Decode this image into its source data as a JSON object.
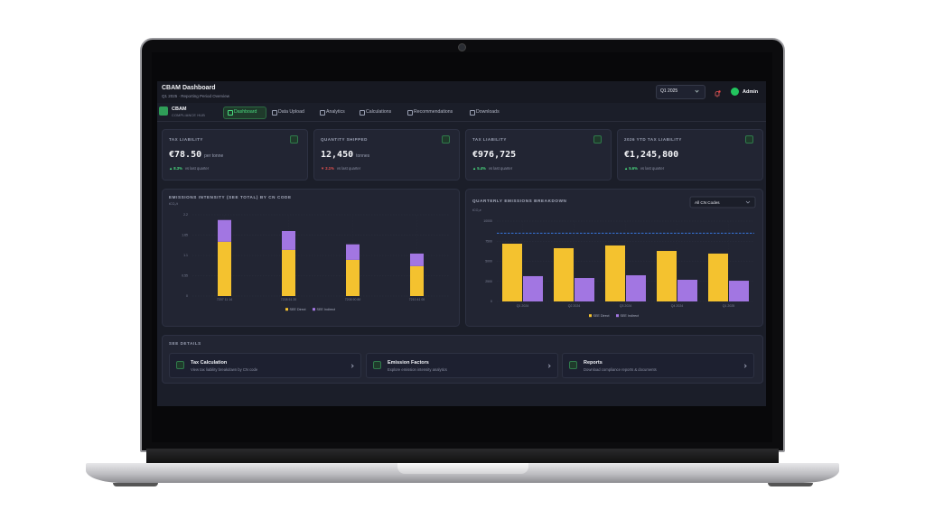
{
  "header": {
    "title": "CBAM Dashboard",
    "subtitle": "Q1 2025 · Reporting Period Overview",
    "period": "Q1 2025",
    "user": "Admin"
  },
  "nav": {
    "brand": "CBAM",
    "tagline": "COMPLIANCE HUB",
    "tabs": [
      "Dashboard",
      "Data Upload",
      "Analytics",
      "Calculations",
      "Recommendations",
      "Downloads"
    ],
    "active": 0
  },
  "kpi_cards": [
    {
      "label": "TAX LIABILITY",
      "value": "€78.50",
      "unit": "per tonne",
      "change": "▲ 8.3%",
      "trend": "up",
      "note": "vs last quarter"
    },
    {
      "label": "QUANTITY SHIPPED",
      "value": "12,450",
      "unit": "tonnes",
      "change": "▼ 2.1%",
      "trend": "down",
      "note": "vs last quarter"
    },
    {
      "label": "TAX LIABILITY",
      "value": "€976,725",
      "change": "▲ 5.4%",
      "trend": "up",
      "note": "vs last quarter"
    },
    {
      "label": "2026 YTD TAX LIABILITY",
      "value": "€1,245,800",
      "change": "▲ 5.6%",
      "trend": "up",
      "note": "vs last quarter"
    }
  ],
  "chart_data": [
    {
      "type": "bar",
      "stacked": true,
      "title": "EMISSIONS INTENSITY (SEE TOTAL) BY CN CODE",
      "y_label": "tCO₂/t",
      "categories": [
        "7207 11 14",
        "7208 51 20",
        "7208 90 80",
        "7210 41 00"
      ],
      "series": [
        {
          "name": "SEE Direct",
          "color": "#f4c22f",
          "values": [
            1.47,
            1.25,
            0.98,
            0.81
          ]
        },
        {
          "name": "SEE Indirect",
          "color": "#a276e2",
          "values": [
            0.59,
            0.51,
            0.42,
            0.34
          ]
        }
      ],
      "ylim": [
        0,
        2.2
      ],
      "yticks": [
        0,
        0.55,
        1.1,
        1.65,
        2.2
      ],
      "grid": true
    },
    {
      "type": "bar",
      "stacked": false,
      "title": "QUARTERLY EMISSIONS BREAKDOWN",
      "y_label": "tCO₂e",
      "filter": "All CN Codes",
      "categories": [
        "Q1 2024",
        "Q2 2024",
        "Q3 2024",
        "Q4 2024",
        "Q1 2025"
      ],
      "series": [
        {
          "name": "SEE Direct",
          "color": "#f4c22f",
          "values": [
            7190,
            6630,
            6970,
            6290,
            5960
          ]
        },
        {
          "name": "SEE Indirect",
          "color": "#a276e2",
          "values": [
            3150,
            2920,
            3260,
            2700,
            2580
          ]
        }
      ],
      "threshold": 8500,
      "threshold_color": "#3b82f6",
      "ylim": [
        0,
        10000
      ],
      "yticks": [
        0,
        2500,
        5000,
        7500,
        10000
      ],
      "grid": true
    }
  ],
  "see_details": {
    "title": "SEE DETAILS",
    "items": [
      {
        "title": "Tax Calculation",
        "description": "View tax liability breakdown by CN code"
      },
      {
        "title": "Emission Factors",
        "description": "Explore emission intensity analytics"
      },
      {
        "title": "Reports",
        "description": "Download compliance reports & documents"
      }
    ]
  }
}
